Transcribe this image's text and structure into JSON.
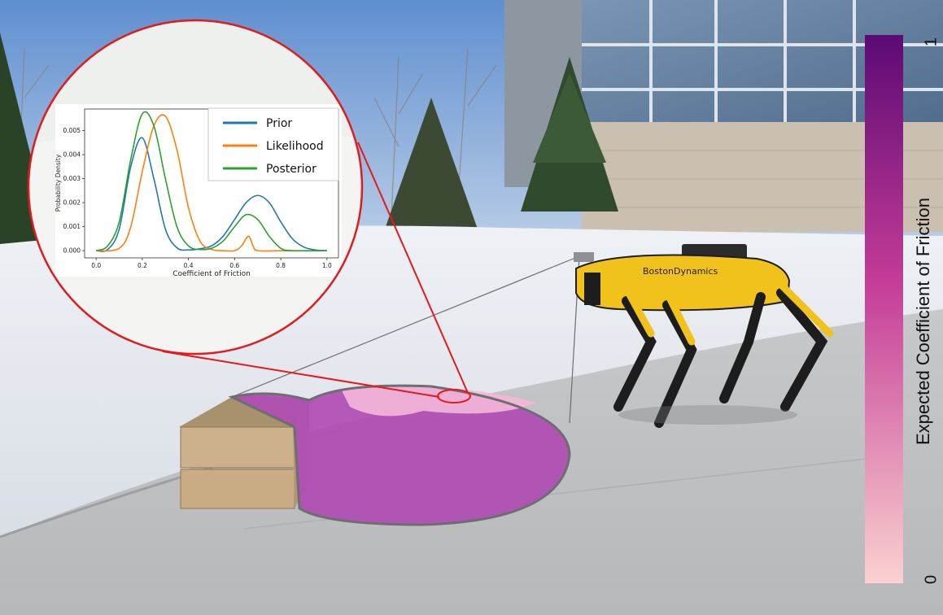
{
  "colorbar": {
    "title": "Expected Coefficient of Friction",
    "max_label": "1",
    "min_label": "0",
    "gradient_top": "#5c0a74",
    "gradient_mid": "#c43c98",
    "gradient_bottom": "#fbd2cf"
  },
  "robot": {
    "brand_text": "BostonDynamics",
    "body_color": "#f2c21c"
  },
  "friction_map": {
    "fill_color": "#b04cb4",
    "highlight_color": "#f4b8d8"
  },
  "callout": {
    "border_color": "#e31a1c"
  },
  "chart_data": {
    "type": "line",
    "xlabel": "Coefficient of Friction",
    "ylabel": "Probability Density",
    "xlim": [
      -0.05,
      1.05
    ],
    "ylim": [
      -0.0003,
      0.0059
    ],
    "xticks": [
      0.0,
      0.2,
      0.4,
      0.6,
      0.8,
      1.0
    ],
    "xtick_labels": [
      "0.0",
      "0.2",
      "0.4",
      "0.6",
      "0.8",
      "1.0"
    ],
    "yticks": [
      0.0,
      0.001,
      0.002,
      0.003,
      0.004,
      0.005
    ],
    "ytick_labels": [
      "0.000",
      "0.001",
      "0.002",
      "0.003",
      "0.004",
      "0.005"
    ],
    "legend_position": "top-right",
    "series": [
      {
        "name": "Prior",
        "color": "#1f77b4",
        "x": [
          0.0,
          0.05,
          0.1,
          0.15,
          0.2,
          0.25,
          0.3,
          0.35,
          0.4,
          0.45,
          0.5,
          0.55,
          0.6,
          0.65,
          0.7,
          0.75,
          0.8,
          0.85,
          0.9,
          0.95,
          1.0
        ],
        "y": [
          0.0,
          5e-05,
          0.0009,
          0.0035,
          0.0047,
          0.003,
          0.0009,
          0.00012,
          3e-05,
          8e-05,
          0.0002,
          0.0006,
          0.0013,
          0.002,
          0.0023,
          0.002,
          0.0012,
          0.0005,
          0.00015,
          3e-05,
          0.0
        ]
      },
      {
        "name": "Likelihood",
        "color": "#ff7f0e",
        "x": [
          0.0,
          0.1,
          0.15,
          0.2,
          0.25,
          0.3,
          0.35,
          0.4,
          0.45,
          0.5,
          0.55,
          0.6,
          0.63,
          0.66,
          0.68,
          0.7,
          0.8,
          1.0
        ],
        "y": [
          0.0,
          0.0001,
          0.001,
          0.0033,
          0.0052,
          0.0056,
          0.0042,
          0.0018,
          0.0004,
          5e-05,
          0.0,
          0.0,
          0.0002,
          0.0006,
          0.0002,
          0.0,
          0.0,
          0.0
        ]
      },
      {
        "name": "Posterior",
        "color": "#2ca02c",
        "x": [
          0.0,
          0.05,
          0.1,
          0.15,
          0.2,
          0.25,
          0.3,
          0.35,
          0.4,
          0.45,
          0.5,
          0.55,
          0.6,
          0.65,
          0.7,
          0.75,
          0.8,
          0.85,
          1.0
        ],
        "y": [
          0.0,
          0.0002,
          0.0012,
          0.0038,
          0.0057,
          0.0052,
          0.003,
          0.001,
          0.0002,
          5e-05,
          0.0001,
          0.0004,
          0.001,
          0.0015,
          0.0013,
          0.0006,
          0.0001,
          0.0,
          0.0
        ]
      }
    ]
  }
}
